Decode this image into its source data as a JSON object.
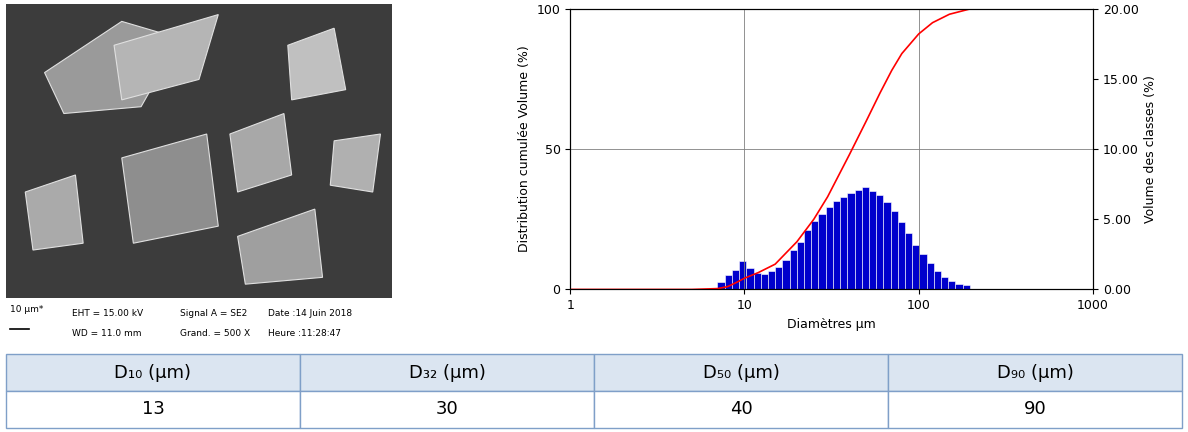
{
  "chart_data": {
    "type": "bar",
    "xlabel": "Diamètres µm",
    "ylabel": "Distribution cumulée Volume (%)",
    "y2label": "Volume des classes (%)",
    "log": "x",
    "grid": true,
    "xlim": [
      1,
      1000
    ],
    "xticks": [
      1,
      10,
      100,
      1000
    ],
    "ylim": [
      0,
      100
    ],
    "yticks": [
      0,
      50,
      100
    ],
    "y2lim": [
      0,
      20
    ],
    "y2ticks": [
      {
        "value": 0,
        "label": "0.00"
      },
      {
        "value": 5,
        "label": "5.00"
      },
      {
        "value": 10,
        "label": "10.00"
      },
      {
        "value": 15,
        "label": "15.00"
      },
      {
        "value": 20,
        "label": "20.00"
      }
    ],
    "bins": [
      7,
      7.7,
      8.47,
      9.32,
      10.25,
      11.27,
      12.4,
      13.64,
      15.0,
      16.5,
      18.15,
      19.97,
      21.97,
      24.16,
      26.58,
      29.24,
      32.16,
      35.38,
      38.91,
      42.8,
      47.08,
      51.79,
      56.97,
      62.67,
      68.93,
      75.83,
      83.41,
      91.75,
      100.9,
      111.0,
      122.1,
      134.3,
      147.8,
      162.5,
      178.8,
      196.7
    ],
    "series": [
      {
        "type": "bar",
        "axis": "y2",
        "color": "#0000cc",
        "values": [
          0.5,
          1.0,
          1.4,
          2.0,
          1.5,
          1.2,
          1.1,
          1.3,
          1.6,
          2.1,
          2.8,
          3.4,
          4.2,
          4.9,
          5.4,
          5.9,
          6.3,
          6.6,
          6.9,
          7.1,
          7.3,
          7.0,
          6.7,
          6.2,
          5.6,
          4.8,
          4.0,
          3.2,
          2.5,
          1.9,
          1.3,
          0.9,
          0.6,
          0.4,
          0.3
        ]
      },
      {
        "type": "line",
        "color": "#ff0000",
        "x": [
          1,
          5,
          7,
          8,
          9,
          10,
          12,
          15,
          20,
          25,
          30,
          40,
          50,
          60,
          70,
          80,
          100,
          120,
          150,
          200
        ],
        "values": [
          0,
          0,
          0.3,
          1,
          2.5,
          4,
          6,
          9,
          17,
          25,
          33,
          48,
          60,
          70,
          78,
          84,
          91,
          95,
          98,
          100
        ]
      }
    ]
  },
  "image": {
    "scale": "10 µm*",
    "info": [
      [
        "EHT = 15.00 kV",
        "WD = 11.0 mm"
      ],
      [
        "Signal A = SE2",
        "Grand. = 500 X"
      ],
      [
        "Date :14 Juin 2018",
        "Heure :11:28:47"
      ]
    ]
  },
  "table": {
    "header": [
      "D₁₀ (µm)",
      "D₃₂ (µm)",
      "D₅₀ (µm)",
      "D₉₀ (µm)"
    ],
    "rows": [
      [
        13,
        30,
        40,
        90
      ]
    ]
  }
}
